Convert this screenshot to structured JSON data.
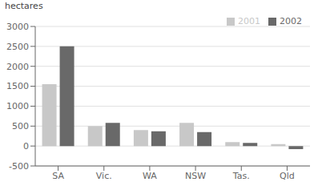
{
  "chart_data": {
    "type": "bar",
    "ylabel": "hectares",
    "categories": [
      "SA",
      "Vic.",
      "WA",
      "NSW",
      "Tas.",
      "Qld"
    ],
    "series": [
      {
        "name": "2001",
        "color": "#c8c8c8",
        "values": [
          1550,
          500,
          400,
          580,
          100,
          50
        ]
      },
      {
        "name": "2002",
        "color": "#696969",
        "values": [
          2500,
          580,
          370,
          350,
          80,
          -80
        ]
      }
    ],
    "ylim": [
      -500,
      3000
    ],
    "yticks": [
      -500,
      0,
      500,
      1000,
      1500,
      2000,
      2500,
      3000
    ],
    "grid": true,
    "legend": "upper right"
  }
}
